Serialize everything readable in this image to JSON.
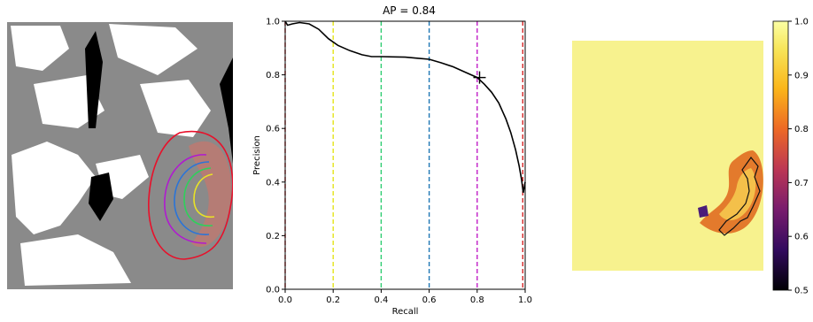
{
  "chart_data": [
    {
      "type": "image",
      "colors": {
        "background": "#000000",
        "white_matter": "#ffffff",
        "gray_matter": "#8a8a8a",
        "lesion_fill": "#b97a72",
        "contours": [
          "#e8102a",
          "#b01ad0",
          "#2a74d8",
          "#2ed15a",
          "#e9e226"
        ]
      }
    },
    {
      "type": "line",
      "title": "AP = 0.84",
      "xlabel": "Recall",
      "ylabel": "Precision",
      "xlim": [
        0.0,
        1.0
      ],
      "ylim": [
        0.0,
        1.0
      ],
      "xticks": [
        "0.0",
        "0.2",
        "0.4",
        "0.6",
        "0.8",
        "1.0"
      ],
      "yticks": [
        "0.0",
        "0.2",
        "0.4",
        "0.6",
        "0.8",
        "1.0"
      ],
      "series": [
        {
          "x": [
            0.0,
            0.01,
            0.03,
            0.06,
            0.1,
            0.14,
            0.18,
            0.22,
            0.27,
            0.32,
            0.36,
            0.4,
            0.45,
            0.5,
            0.55,
            0.6,
            0.65,
            0.7,
            0.75,
            0.8,
            0.83,
            0.86,
            0.89,
            0.92,
            0.94,
            0.96,
            0.975,
            0.985,
            0.992,
            1.0
          ],
          "y": [
            1.0,
            0.985,
            0.99,
            0.995,
            0.99,
            0.97,
            0.935,
            0.91,
            0.89,
            0.875,
            0.868,
            0.868,
            0.867,
            0.866,
            0.862,
            0.858,
            0.845,
            0.83,
            0.81,
            0.79,
            0.765,
            0.735,
            0.695,
            0.635,
            0.585,
            0.52,
            0.46,
            0.41,
            0.36,
            0.4
          ]
        }
      ],
      "vlines": [
        {
          "x": 0.0,
          "color": "#d62728"
        },
        {
          "x": 0.2,
          "color": "#e4e41a"
        },
        {
          "x": 0.4,
          "color": "#2ecc71"
        },
        {
          "x": 0.6,
          "color": "#1f77b4"
        },
        {
          "x": 0.8,
          "color": "#c01dc7"
        },
        {
          "x": 0.99,
          "color": "#d62728"
        }
      ],
      "marker": {
        "x": 0.81,
        "y": 0.79,
        "symbol": "+"
      },
      "grid": false
    },
    {
      "type": "heatmap",
      "colormap": "inferno",
      "colorbar": {
        "range": [
          0.5,
          1.0
        ],
        "ticks": [
          "0.5",
          "0.6",
          "0.7",
          "0.8",
          "0.9",
          "1.0"
        ]
      }
    }
  ]
}
